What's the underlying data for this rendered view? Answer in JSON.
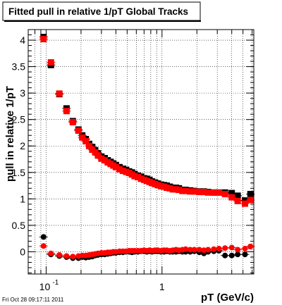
{
  "chart_data": {
    "type": "scatter",
    "title": "Fitted pull in relative 1/pT  Global Tracks",
    "xlabel": "pT (GeV/c)",
    "ylabel": "pull in relative 1/pT",
    "xscale": "log",
    "xlim": [
      0.07,
      6.2
    ],
    "ylim": [
      -0.42,
      4.2
    ],
    "grid": true,
    "yticks": [
      0,
      0.5,
      1,
      1.5,
      2,
      2.5,
      3,
      3.5,
      4
    ],
    "ytick_labels": [
      "0",
      "0.5",
      "1",
      "1.5",
      "2",
      "2.5",
      "3",
      "3.5",
      "4"
    ],
    "xtick_labels": [
      {
        "value": 0.1,
        "base": "10",
        "exp": "-1"
      },
      {
        "value": 1,
        "base": "1",
        "exp": ""
      }
    ],
    "footer": "Fri Oct 28 09:17:11 2011",
    "series": [
      {
        "color": "#000000",
        "marker": "square",
        "x": [
          0.095,
          0.11,
          0.13,
          0.15,
          0.17,
          0.19,
          0.205,
          0.22,
          0.235,
          0.25,
          0.265,
          0.28,
          0.3,
          0.32,
          0.34,
          0.36,
          0.38,
          0.4,
          0.43,
          0.46,
          0.49,
          0.52,
          0.55,
          0.58,
          0.62,
          0.66,
          0.7,
          0.74,
          0.78,
          0.82,
          0.87,
          0.92,
          0.98,
          1.04,
          1.1,
          1.17,
          1.24,
          1.32,
          1.4,
          1.5,
          1.6,
          1.75,
          1.9,
          2.1,
          2.3,
          2.5,
          2.8,
          3.1,
          3.5,
          4.0,
          4.5,
          5.2,
          5.8
        ],
        "y": [
          4.06,
          3.53,
          2.98,
          2.71,
          2.47,
          2.31,
          2.2,
          2.13,
          2.04,
          1.98,
          1.92,
          1.86,
          1.8,
          1.77,
          1.73,
          1.7,
          1.67,
          1.64,
          1.6,
          1.57,
          1.55,
          1.52,
          1.5,
          1.47,
          1.44,
          1.42,
          1.39,
          1.38,
          1.36,
          1.33,
          1.31,
          1.29,
          1.27,
          1.26,
          1.25,
          1.23,
          1.21,
          1.21,
          1.2,
          1.17,
          1.17,
          1.16,
          1.15,
          1.14,
          1.14,
          1.13,
          1.12,
          1.12,
          1.12,
          1.11,
          1.06,
          0.97,
          1.09
        ]
      },
      {
        "color": "#000000",
        "marker": "circle",
        "x": [
          0.095,
          0.11,
          0.13,
          0.15,
          0.17,
          0.19,
          0.205,
          0.22,
          0.235,
          0.25,
          0.265,
          0.28,
          0.3,
          0.32,
          0.34,
          0.36,
          0.38,
          0.4,
          0.43,
          0.46,
          0.49,
          0.52,
          0.55,
          0.58,
          0.62,
          0.66,
          0.7,
          0.74,
          0.78,
          0.82,
          0.87,
          0.92,
          0.98,
          1.04,
          1.1,
          1.17,
          1.24,
          1.32,
          1.4,
          1.5,
          1.6,
          1.75,
          1.9,
          2.1,
          2.3,
          2.5,
          2.8,
          3.1,
          3.5,
          4.0,
          4.5,
          5.2,
          5.8
        ],
        "y": [
          0.28,
          -0.05,
          -0.08,
          -0.1,
          -0.12,
          -0.12,
          -0.1,
          -0.11,
          -0.1,
          -0.09,
          -0.07,
          -0.06,
          -0.05,
          -0.05,
          -0.04,
          -0.03,
          -0.02,
          -0.02,
          -0.01,
          -0.01,
          0.0,
          0.0,
          -0.01,
          0.0,
          0.0,
          0.01,
          0.01,
          0.0,
          0.01,
          0.0,
          0.01,
          0.01,
          0.0,
          0.0,
          0.01,
          0.0,
          0.0,
          0.0,
          0.01,
          0.0,
          0.0,
          0.0,
          0.01,
          -0.01,
          -0.03,
          0.0,
          0.01,
          0.02,
          -0.07,
          -0.07,
          -0.05,
          -0.05,
          0.1
        ]
      },
      {
        "color": "#ff0000",
        "marker": "square",
        "x": [
          0.095,
          0.11,
          0.13,
          0.15,
          0.17,
          0.19,
          0.205,
          0.22,
          0.235,
          0.25,
          0.265,
          0.28,
          0.3,
          0.32,
          0.34,
          0.36,
          0.38,
          0.4,
          0.43,
          0.46,
          0.49,
          0.52,
          0.55,
          0.58,
          0.62,
          0.66,
          0.7,
          0.74,
          0.78,
          0.82,
          0.87,
          0.92,
          0.98,
          1.04,
          1.1,
          1.17,
          1.24,
          1.32,
          1.4,
          1.5,
          1.6,
          1.75,
          1.9,
          2.1,
          2.3,
          2.5,
          2.8,
          3.1,
          3.5,
          4.0,
          4.5,
          5.2,
          5.8
        ],
        "y": [
          4.02,
          3.58,
          2.99,
          2.66,
          2.45,
          2.29,
          2.16,
          2.09,
          2.0,
          1.93,
          1.88,
          1.82,
          1.76,
          1.73,
          1.69,
          1.66,
          1.63,
          1.6,
          1.56,
          1.53,
          1.51,
          1.49,
          1.46,
          1.43,
          1.41,
          1.38,
          1.36,
          1.34,
          1.32,
          1.3,
          1.28,
          1.26,
          1.24,
          1.23,
          1.21,
          1.2,
          1.18,
          1.18,
          1.17,
          1.15,
          1.15,
          1.14,
          1.14,
          1.13,
          1.13,
          1.12,
          1.12,
          1.12,
          1.09,
          1.03,
          0.96,
          0.91,
          0.98
        ]
      },
      {
        "color": "#ff0000",
        "marker": "circle",
        "x": [
          0.095,
          0.11,
          0.13,
          0.15,
          0.17,
          0.19,
          0.205,
          0.22,
          0.235,
          0.25,
          0.265,
          0.28,
          0.3,
          0.32,
          0.34,
          0.36,
          0.38,
          0.4,
          0.43,
          0.46,
          0.49,
          0.52,
          0.55,
          0.58,
          0.62,
          0.66,
          0.7,
          0.74,
          0.78,
          0.82,
          0.87,
          0.92,
          0.98,
          1.04,
          1.1,
          1.17,
          1.24,
          1.32,
          1.4,
          1.5,
          1.6,
          1.75,
          1.9,
          2.1,
          2.3,
          2.5,
          2.8,
          3.1,
          3.5,
          4.0,
          4.5,
          5.2,
          5.8
        ],
        "y": [
          0.11,
          -0.03,
          -0.06,
          -0.08,
          -0.09,
          -0.08,
          -0.07,
          -0.07,
          -0.06,
          -0.05,
          -0.04,
          -0.03,
          -0.02,
          -0.02,
          -0.01,
          -0.01,
          0.0,
          0.0,
          0.01,
          0.01,
          0.01,
          0.02,
          0.02,
          0.02,
          0.02,
          0.02,
          0.03,
          0.02,
          0.03,
          0.02,
          0.03,
          0.03,
          0.02,
          0.03,
          0.03,
          0.02,
          0.03,
          0.04,
          0.03,
          0.04,
          0.05,
          0.04,
          0.04,
          0.04,
          0.03,
          0.04,
          0.05,
          0.06,
          0.07,
          0.08,
          0.04,
          0.06,
          0.1
        ]
      }
    ]
  }
}
